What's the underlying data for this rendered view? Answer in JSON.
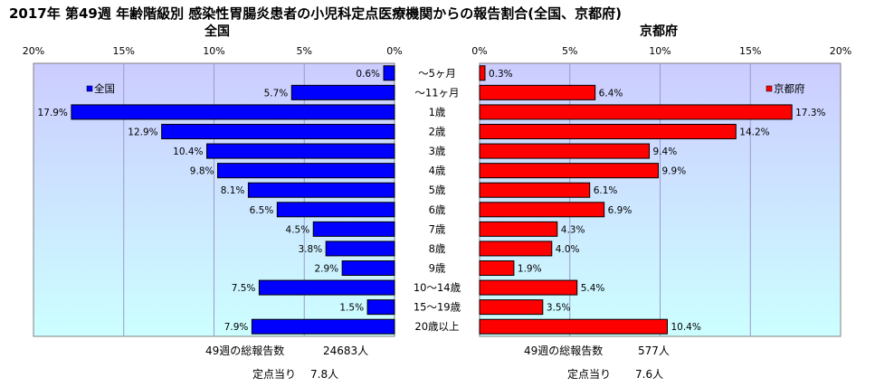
{
  "title": "2017年 第49週 年齢階級別 感染性胃腸炎患者の小児科定点医療機関からの報告割合(全国、京都府)",
  "chart_data": [
    {
      "type": "bar",
      "orientation": "horizontal",
      "direction": "right-to-left",
      "panel": "left",
      "title": "全国",
      "xlim": [
        0,
        20
      ],
      "xticks": [
        "20%",
        "15%",
        "10%",
        "5%",
        "0%"
      ],
      "series": [
        {
          "name": "全国",
          "color": "#0000ff",
          "values": [
            0.6,
            5.7,
            17.9,
            12.9,
            10.4,
            9.8,
            8.1,
            6.5,
            4.5,
            3.8,
            2.9,
            7.5,
            1.5,
            7.9
          ]
        }
      ],
      "legend": "top-left"
    },
    {
      "type": "bar",
      "orientation": "horizontal",
      "direction": "left-to-right",
      "panel": "right",
      "title": "京都府",
      "xlim": [
        0,
        20
      ],
      "xticks": [
        "0%",
        "5%",
        "10%",
        "15%",
        "20%"
      ],
      "series": [
        {
          "name": "京都府",
          "color": "#ff0000",
          "values": [
            0.3,
            6.4,
            17.3,
            14.2,
            9.4,
            9.9,
            6.1,
            6.9,
            4.3,
            4.0,
            1.9,
            5.4,
            3.5,
            10.4
          ]
        }
      ],
      "legend": "top-right"
    }
  ],
  "categories": [
    "～5ヶ月",
    "～11ヶ月",
    "1歳",
    "2歳",
    "3歳",
    "4歳",
    "5歳",
    "6歳",
    "7歳",
    "8歳",
    "9歳",
    "10～14歳",
    "15～19歳",
    "20歳以上"
  ],
  "footer": {
    "left": {
      "total_label": "49週の総報告数",
      "total_value": "24683人",
      "per_label": "定点当り",
      "per_value": "7.8人"
    },
    "right": {
      "total_label": "49週の総報告数",
      "total_value": "577人",
      "per_label": "定点当り",
      "per_value": "7.6人"
    }
  },
  "colors": {
    "plot_top": "#ccccff",
    "plot_bottom": "#ccffff",
    "grid": "#9999cc"
  }
}
